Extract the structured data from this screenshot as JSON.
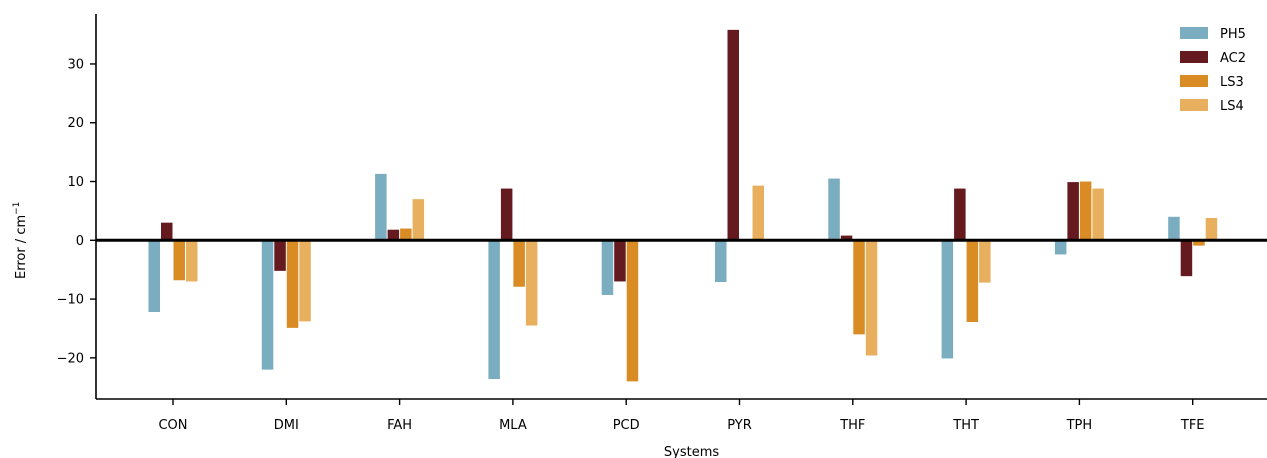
{
  "chart_data": {
    "type": "bar",
    "xlabel": "Systems",
    "ylabel": "Error / cm",
    "ylabel_superscript": "−1",
    "categories": [
      "CON",
      "DMI",
      "FAH",
      "MLA",
      "PCD",
      "PYR",
      "THF",
      "THT",
      "TPH",
      "TFE"
    ],
    "ylim": [
      -27,
      38.5
    ],
    "yticks": [
      -20,
      -10,
      0,
      10,
      20,
      30
    ],
    "grid": false,
    "legend_position": "top-right",
    "zero_line": true,
    "series": [
      {
        "name": "PH5",
        "color": "#79adbf",
        "values": [
          -12.2,
          -22.0,
          11.3,
          -23.6,
          -9.3,
          -7.1,
          10.5,
          -20.1,
          -2.4,
          4.0
        ]
      },
      {
        "name": "AC2",
        "color": "#641a1e",
        "values": [
          3.0,
          -5.2,
          1.8,
          8.8,
          -7.0,
          35.8,
          0.8,
          8.8,
          9.9,
          -6.1
        ]
      },
      {
        "name": "LS3",
        "color": "#d98c24",
        "values": [
          -6.8,
          -14.9,
          2.0,
          -7.9,
          -24.0,
          0,
          -16.0,
          -13.9,
          10.0,
          -0.9
        ]
      },
      {
        "name": "LS4",
        "color": "#e8b05e",
        "values": [
          -7.0,
          -13.8,
          7.0,
          -14.5,
          0,
          9.3,
          -19.6,
          -7.2,
          8.8,
          3.8
        ]
      }
    ]
  }
}
